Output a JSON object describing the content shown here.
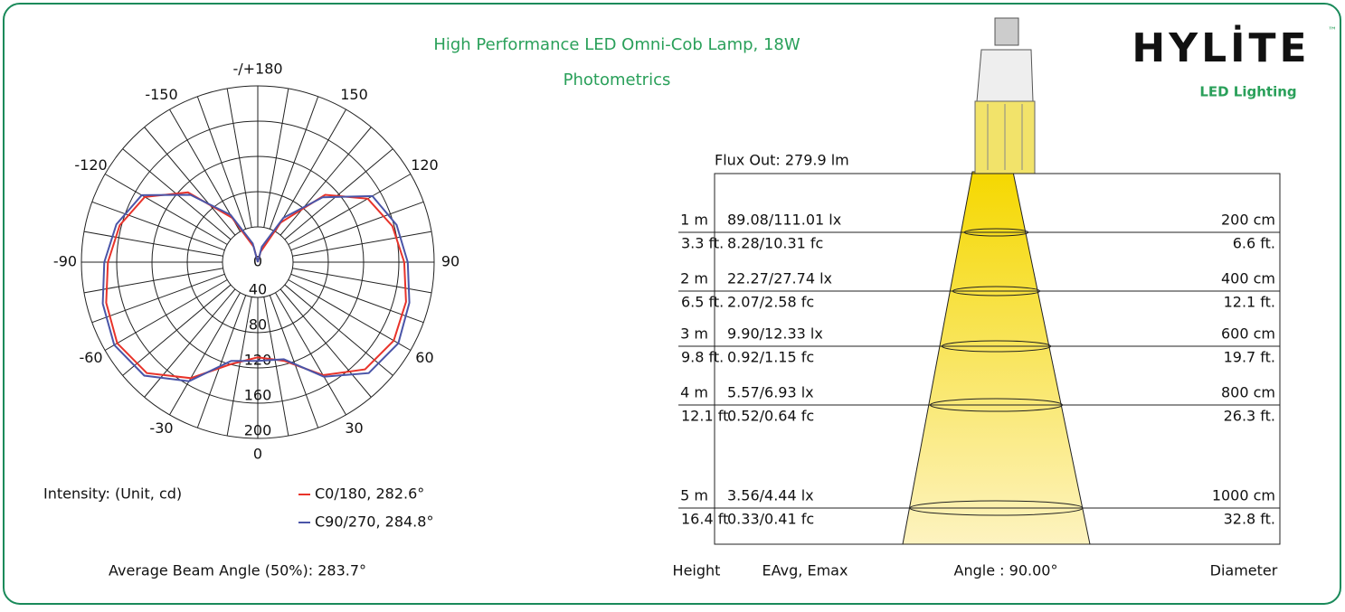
{
  "header": {
    "title": "High Performance LED Omni-Cob Lamp, 18W",
    "subtitle": "Photometrics",
    "brand": "HYLİTE",
    "trademark": "™",
    "brand_sub": "LED Lighting"
  },
  "chart_data": {
    "type": "polar",
    "angle_ticks": [
      {
        "value": 180,
        "label": "-/+180"
      },
      -150,
      150,
      -120,
      120,
      -90,
      90,
      -60,
      60,
      -30,
      30,
      0
    ],
    "rlim": [
      0,
      200
    ],
    "rticks": [
      0,
      40,
      80,
      120,
      160,
      200
    ],
    "angles": [
      -180,
      -165,
      -150,
      -135,
      -120,
      -105,
      -90,
      -75,
      -60,
      -45,
      -30,
      -15,
      0,
      15,
      30,
      45,
      60,
      75,
      90,
      105,
      120,
      135,
      150,
      165,
      180
    ],
    "series": [
      {
        "name": "C0/180, 282.6°",
        "color": "#e8332a",
        "values": [
          0,
          18,
          58,
          112,
          148,
          162,
          170,
          178,
          184,
          178,
          152,
          120,
          108,
          116,
          148,
          172,
          178,
          174,
          166,
          158,
          144,
          108,
          52,
          12,
          0
        ]
      },
      {
        "name": "C90/270, 284.8°",
        "color": "#4a55a8",
        "values": [
          0,
          22,
          62,
          108,
          152,
          166,
          174,
          182,
          188,
          182,
          156,
          116,
          112,
          114,
          150,
          178,
          184,
          178,
          170,
          163,
          150,
          104,
          58,
          18,
          0
        ]
      }
    ],
    "unit_label": "Intensity: (Unit, cd)",
    "beam_angle": "Average Beam Angle (50%):  283.7°"
  },
  "illuminance": {
    "flux": "Flux Out: 279.9 lm",
    "rows": [
      [
        "1 m",
        "3.3 ft.",
        "89.08/111.01 lx",
        "8.28/10.31 fc",
        "200 cm",
        "6.6 ft."
      ],
      [
        "2 m",
        "6.5 ft.",
        "22.27/27.74 lx",
        "2.07/2.58 fc",
        "400 cm",
        "12.1 ft."
      ],
      [
        "3 m",
        "9.8 ft.",
        "9.90/12.33 lx",
        "0.92/1.15 fc",
        "600 cm",
        "19.7 ft."
      ],
      [
        "4 m",
        "12.1 ft.",
        "5.57/6.93 lx",
        "0.52/0.64 fc",
        "800 cm",
        "26.3 ft."
      ],
      [
        "5 m",
        "16.4 ft",
        "3.56/4.44 lx",
        "0.33/0.41 fc",
        "1000 cm",
        "32.8 ft."
      ]
    ],
    "footer": [
      "Height",
      "EAvg, Emax",
      "Angle : 90.00°",
      "Diameter"
    ]
  }
}
